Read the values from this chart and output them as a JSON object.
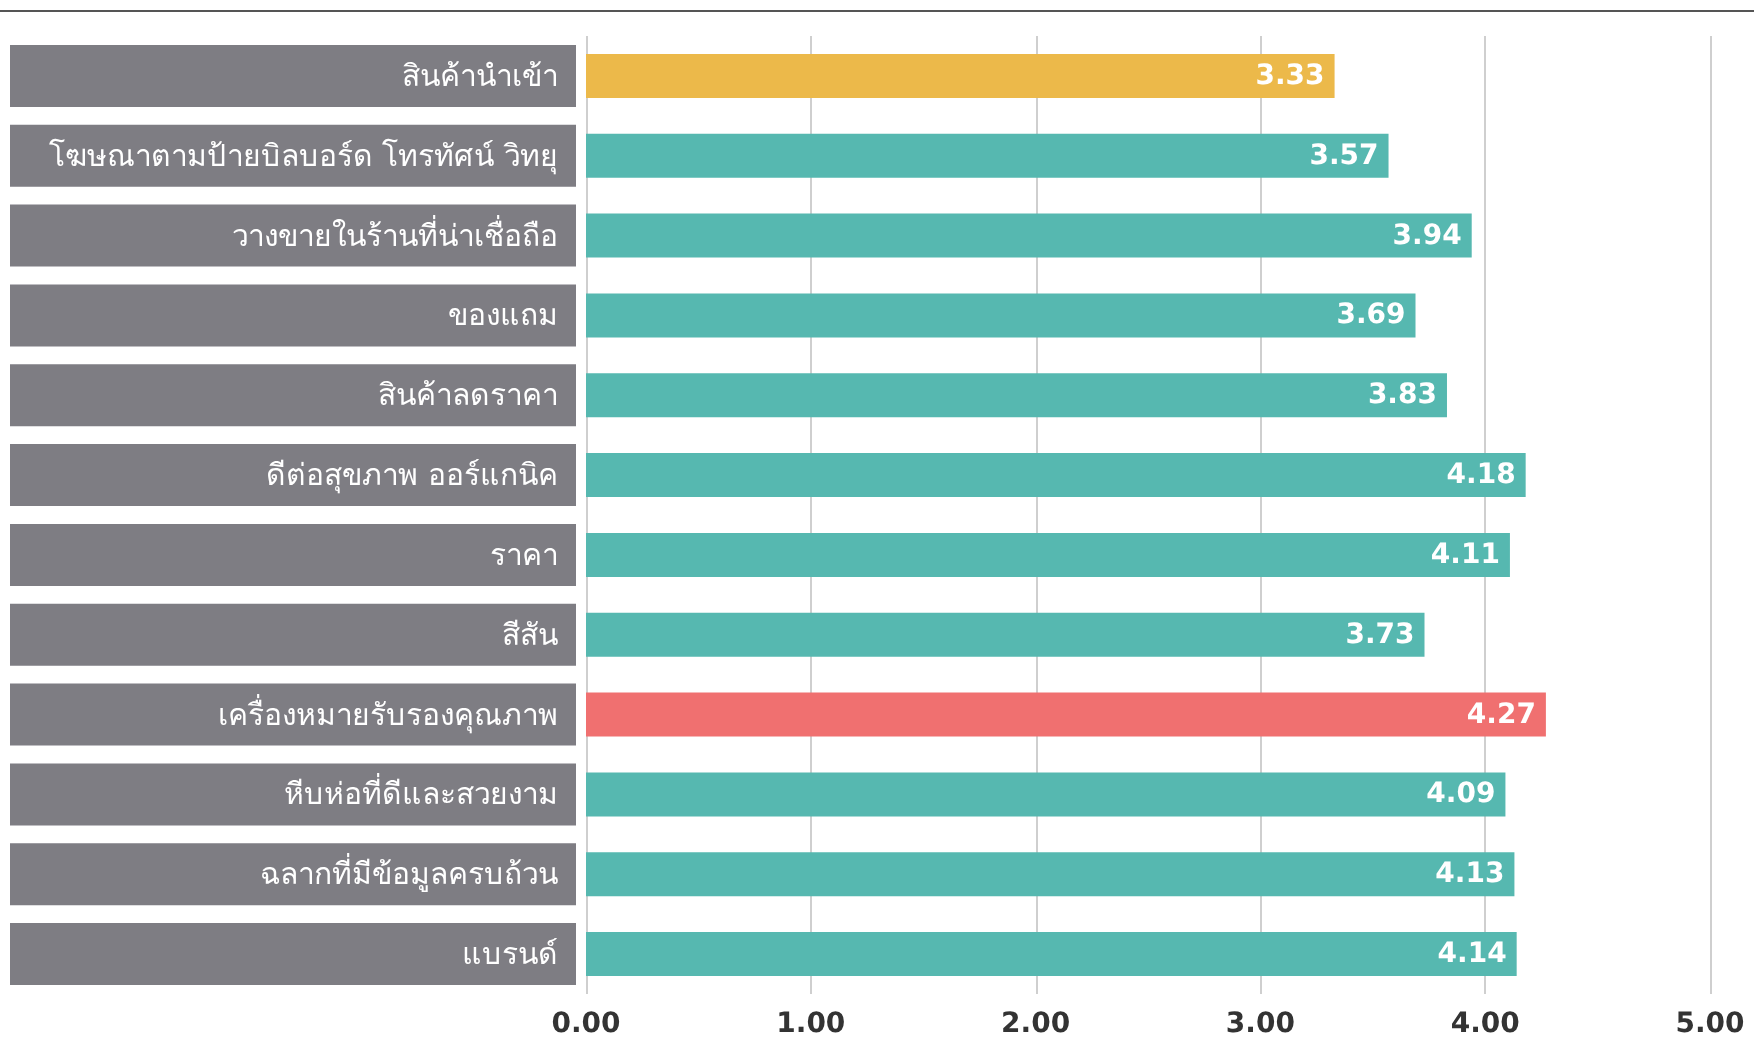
{
  "chart_data": {
    "type": "bar",
    "orientation": "horizontal",
    "categories": [
      "สินค้านำเข้า",
      "โฆษณาตามป้ายบิลบอร์ด โทรทัศน์ วิทยุ",
      "วางขายในร้านที่น่าเชื่อถือ",
      "ของแถม",
      "สินค้าลดราคา",
      "ดีต่อสุขภาพ ออร์แกนิค",
      "ราคา",
      "สีสัน",
      "เครื่องหมายรับรองคุณภาพ",
      "หีบห่อที่ดีและสวยงาม",
      "ฉลากที่มีข้อมูลครบถ้วน",
      "แบรนด์"
    ],
    "values": [
      3.33,
      3.57,
      3.94,
      3.69,
      3.83,
      4.18,
      4.11,
      3.73,
      4.27,
      4.09,
      4.13,
      4.14
    ],
    "colors": [
      "#ecb94a",
      "#56b8b0",
      "#56b8b0",
      "#56b8b0",
      "#56b8b0",
      "#56b8b0",
      "#56b8b0",
      "#56b8b0",
      "#f07070",
      "#56b8b0",
      "#56b8b0",
      "#56b8b0"
    ],
    "xlim": [
      0,
      5
    ],
    "xticks": [
      {
        "value": 0,
        "label": "0.00"
      },
      {
        "value": 1,
        "label": "1.00"
      },
      {
        "value": 2,
        "label": "2.00"
      },
      {
        "value": 3,
        "label": "3.00"
      },
      {
        "value": 4,
        "label": "4.00"
      },
      {
        "value": 5,
        "label": "5.00"
      }
    ],
    "grid": "x",
    "data_labels": true
  }
}
